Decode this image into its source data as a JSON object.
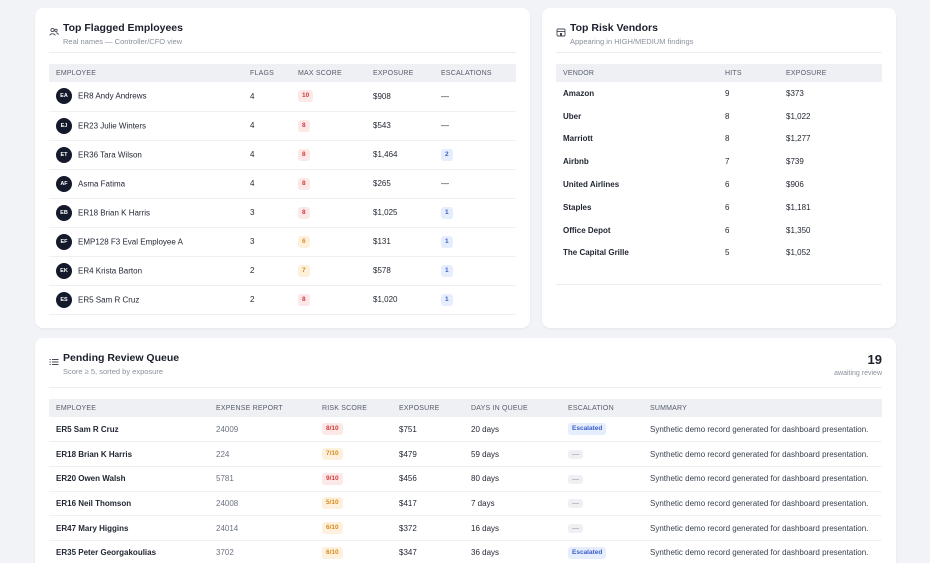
{
  "employees_card": {
    "title": "Top Flagged Employees",
    "subtitle": "Real names — Controller/CFO view",
    "icon": "users-icon",
    "columns": [
      "EMPLOYEE",
      "FLAGS",
      "MAX SCORE",
      "EXPOSURE",
      "ESCALATIONS"
    ],
    "rows": [
      {
        "initials": "EA",
        "name": "ER8 Andy Andrews",
        "flags": "4",
        "max_score": "10",
        "score_color": "red",
        "exposure": "$908",
        "escalations": "—"
      },
      {
        "initials": "EJ",
        "name": "ER23 Julie Winters",
        "flags": "4",
        "max_score": "8",
        "score_color": "red",
        "exposure": "$543",
        "escalations": "—"
      },
      {
        "initials": "ET",
        "name": "ER36 Tara Wilson",
        "flags": "4",
        "max_score": "8",
        "score_color": "red",
        "exposure": "$1,464",
        "escalations": "2"
      },
      {
        "initials": "AF",
        "name": "Asma Fatima",
        "flags": "4",
        "max_score": "8",
        "score_color": "red",
        "exposure": "$265",
        "escalations": "—"
      },
      {
        "initials": "EB",
        "name": "ER18 Brian K Harris",
        "flags": "3",
        "max_score": "8",
        "score_color": "red",
        "exposure": "$1,025",
        "escalations": "1"
      },
      {
        "initials": "EF",
        "name": "EMP128 F3 Eval Employee A",
        "flags": "3",
        "max_score": "6",
        "score_color": "orange",
        "exposure": "$131",
        "escalations": "1"
      },
      {
        "initials": "EK",
        "name": "ER4 Krista Barton",
        "flags": "2",
        "max_score": "7",
        "score_color": "orange",
        "exposure": "$578",
        "escalations": "1"
      },
      {
        "initials": "ES",
        "name": "ER5 Sam R Cruz",
        "flags": "2",
        "max_score": "8",
        "score_color": "red",
        "exposure": "$1,020",
        "escalations": "1"
      }
    ]
  },
  "vendors_card": {
    "title": "Top Risk Vendors",
    "subtitle": "Appearing in HIGH/MEDIUM findings",
    "icon": "store-icon",
    "columns": [
      "VENDOR",
      "HITS",
      "EXPOSURE"
    ],
    "rows": [
      {
        "vendor": "Amazon",
        "hits": "9",
        "exposure": "$373"
      },
      {
        "vendor": "Uber",
        "hits": "8",
        "exposure": "$1,022"
      },
      {
        "vendor": "Marriott",
        "hits": "8",
        "exposure": "$1,277"
      },
      {
        "vendor": "Airbnb",
        "hits": "7",
        "exposure": "$739"
      },
      {
        "vendor": "United Airlines",
        "hits": "6",
        "exposure": "$906"
      },
      {
        "vendor": "Staples",
        "hits": "6",
        "exposure": "$1,181"
      },
      {
        "vendor": "Office Depot",
        "hits": "6",
        "exposure": "$1,350"
      },
      {
        "vendor": "The Capital Grille",
        "hits": "5",
        "exposure": "$1,052"
      }
    ]
  },
  "queue_card": {
    "title": "Pending Review Queue",
    "subtitle": "Score ≥ 5, sorted by exposure",
    "icon": "list-icon",
    "count": "19",
    "count_label": "awaiting review",
    "columns": [
      "EMPLOYEE",
      "EXPENSE REPORT",
      "RISK SCORE",
      "EXPOSURE",
      "DAYS IN QUEUE",
      "ESCALATION",
      "SUMMARY"
    ],
    "rows": [
      {
        "employee": "ER5 Sam R Cruz",
        "report": "24009",
        "score": "8/10",
        "score_color": "red",
        "exposure": "$751",
        "days": "20 days",
        "escalation": "Escalated",
        "summary": "Synthetic demo record generated for dashboard presentation."
      },
      {
        "employee": "ER18 Brian K Harris",
        "report": "224",
        "score": "7/10",
        "score_color": "orange",
        "exposure": "$479",
        "days": "59 days",
        "escalation": "—",
        "summary": "Synthetic demo record generated for dashboard presentation."
      },
      {
        "employee": "ER20 Owen Walsh",
        "report": "5781",
        "score": "9/10",
        "score_color": "red",
        "exposure": "$456",
        "days": "80 days",
        "escalation": "—",
        "summary": "Synthetic demo record generated for dashboard presentation."
      },
      {
        "employee": "ER16 Neil Thomson",
        "report": "24008",
        "score": "5/10",
        "score_color": "orange",
        "exposure": "$417",
        "days": "7 days",
        "escalation": "—",
        "summary": "Synthetic demo record generated for dashboard presentation."
      },
      {
        "employee": "ER47 Mary Higgins",
        "report": "24014",
        "score": "6/10",
        "score_color": "orange",
        "exposure": "$372",
        "days": "16 days",
        "escalation": "—",
        "summary": "Synthetic demo record generated for dashboard presentation."
      },
      {
        "employee": "ER35 Peter Georgakoulias",
        "report": "3702",
        "score": "6/10",
        "score_color": "orange",
        "exposure": "$347",
        "days": "36 days",
        "escalation": "Escalated",
        "summary": "Synthetic demo record generated for dashboard presentation."
      }
    ]
  }
}
